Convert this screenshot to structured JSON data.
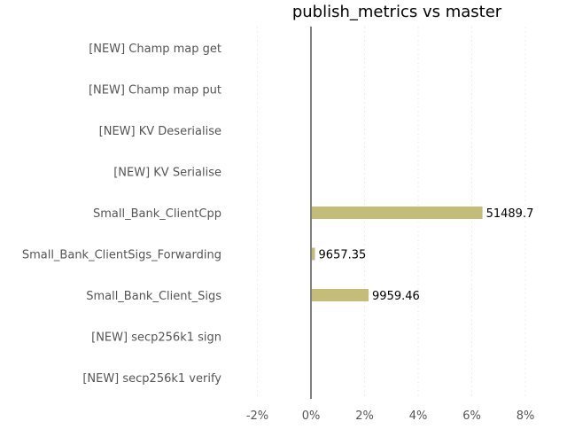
{
  "chart_data": {
    "type": "bar",
    "orientation": "horizontal",
    "title": "publish_metrics vs master",
    "xlabel": "",
    "ylabel": "",
    "xlim": [
      -3,
      8.5
    ],
    "x_ticks": [
      -2,
      0,
      2,
      4,
      6,
      8
    ],
    "x_tick_labels": [
      "-2%",
      "0%",
      "2%",
      "4%",
      "6%",
      "8%"
    ],
    "grid": true,
    "bar_color": "#c3bd78",
    "zero_line_color": "#808080",
    "categories": [
      "[NEW] Champ map get",
      "[NEW] Champ map put",
      "[NEW] KV Deserialise",
      "[NEW] KV Serialise",
      "Small_Bank_ClientCpp",
      "Small_Bank_ClientSigs_Forwarding",
      "Small_Bank_Client_Sigs",
      "[NEW] secp256k1 sign",
      "[NEW] secp256k1 verify"
    ],
    "values": [
      null,
      null,
      null,
      null,
      6.4,
      0.15,
      2.15,
      null,
      null
    ],
    "data_labels": [
      "",
      "",
      "",
      "",
      "51489.7",
      "9657.35",
      "9959.46",
      "",
      ""
    ]
  }
}
